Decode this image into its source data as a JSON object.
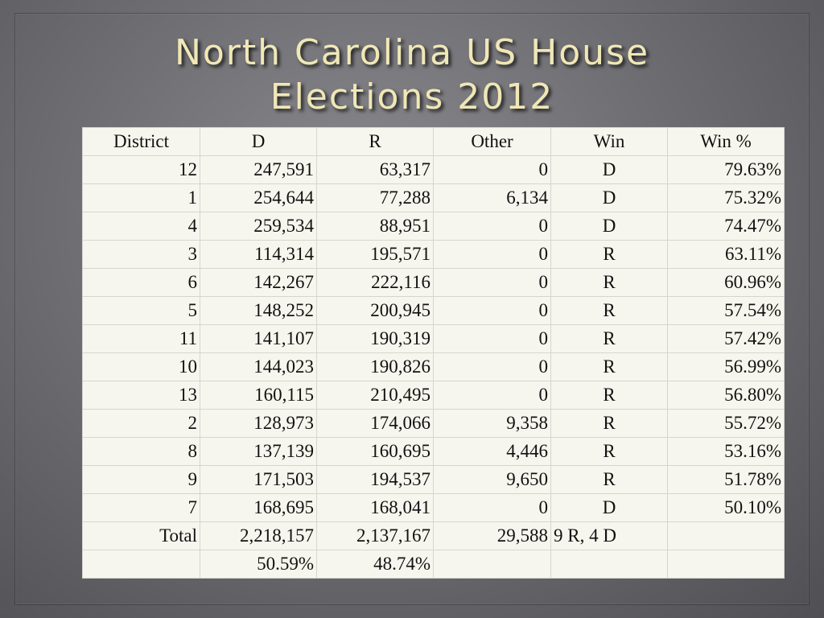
{
  "slide": {
    "title_line1": "North Carolina US House",
    "title_line2": "Elections 2012"
  },
  "table": {
    "headers": [
      "District",
      "D",
      "R",
      "Other",
      "Win",
      "Win %"
    ],
    "rows": [
      {
        "district": "12",
        "d": "247,591",
        "r": "63,317",
        "other": "0",
        "win": "D",
        "win_pct": "79.63%"
      },
      {
        "district": "1",
        "d": "254,644",
        "r": "77,288",
        "other": "6,134",
        "win": "D",
        "win_pct": "75.32%"
      },
      {
        "district": "4",
        "d": "259,534",
        "r": "88,951",
        "other": "0",
        "win": "D",
        "win_pct": "74.47%"
      },
      {
        "district": "3",
        "d": "114,314",
        "r": "195,571",
        "other": "0",
        "win": "R",
        "win_pct": "63.11%"
      },
      {
        "district": "6",
        "d": "142,267",
        "r": "222,116",
        "other": "0",
        "win": "R",
        "win_pct": "60.96%"
      },
      {
        "district": "5",
        "d": "148,252",
        "r": "200,945",
        "other": "0",
        "win": "R",
        "win_pct": "57.54%"
      },
      {
        "district": "11",
        "d": "141,107",
        "r": "190,319",
        "other": "0",
        "win": "R",
        "win_pct": "57.42%"
      },
      {
        "district": "10",
        "d": "144,023",
        "r": "190,826",
        "other": "0",
        "win": "R",
        "win_pct": "56.99%"
      },
      {
        "district": "13",
        "d": "160,115",
        "r": "210,495",
        "other": "0",
        "win": "R",
        "win_pct": "56.80%"
      },
      {
        "district": "2",
        "d": "128,973",
        "r": "174,066",
        "other": "9,358",
        "win": "R",
        "win_pct": "55.72%"
      },
      {
        "district": "8",
        "d": "137,139",
        "r": "160,695",
        "other": "4,446",
        "win": "R",
        "win_pct": "53.16%"
      },
      {
        "district": "9",
        "d": "171,503",
        "r": "194,537",
        "other": "9,650",
        "win": "R",
        "win_pct": "51.78%"
      },
      {
        "district": "7",
        "d": "168,695",
        "r": "168,041",
        "other": "0",
        "win": "D",
        "win_pct": "50.10%"
      }
    ],
    "total": {
      "label": "Total",
      "d": "2,218,157",
      "r": "2,137,167",
      "other": "29,588",
      "win": "9 R, 4 D",
      "win_pct": ""
    },
    "share": {
      "label": "",
      "d": "50.59%",
      "r": "48.74%",
      "other": "",
      "win": "",
      "win_pct": ""
    }
  },
  "colors": {
    "title": "#f0e7b6",
    "table_background": "#f7f6ee",
    "background": "#6f6f74"
  }
}
